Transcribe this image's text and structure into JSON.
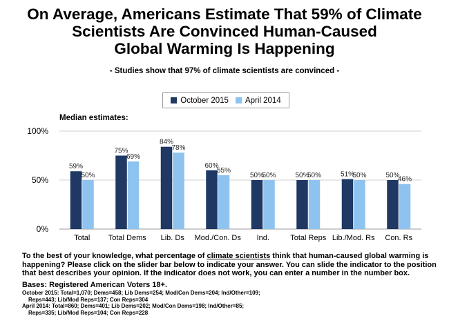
{
  "title": {
    "line1": "On Average, Americans Estimate That 59% of Climate",
    "line2": "Scientists Are Convinced Human-Caused",
    "line3": "Global Warming Is Happening"
  },
  "subtitle": "- Studies show that 97% of climate scientists are convinced -",
  "median_label": "Median estimates:",
  "question": {
    "before": "To the best of your knowledge, what percentage of ",
    "link": "climate scientists",
    "after": " think that human-caused global warming is happening? Please click on the slider bar below to indicate your answer. You can slide the indicator to the position that best describes your opinion. If the indicator does not work, you can enter a number in the number box."
  },
  "bases": "Bases: Registered American Voters 18+.",
  "notes": {
    "oct_line1": "October 2015: Total=1,070; Dems=458; Lib Dems=254; Mod/Con Dems=204; Ind/Other=109;",
    "oct_line2": "Reps=443; Lib/Mod Reps=137; Con Reps=304",
    "apr_line1": "April 2014: Total=860; Dems=401; Lib Dems=202; Mod/Con Dems=198; Ind/Other=85;",
    "apr_line2": "Reps=335; Lib/Mod Reps=104; Con Reps=228"
  },
  "colors": {
    "oct": "#1f3864",
    "apr": "#8ec3f0",
    "grid": "#d0d0d0",
    "axis": "#999999"
  },
  "chart_data": {
    "type": "bar",
    "title": "On Average, Americans Estimate That 59% of Climate Scientists Are Convinced Human-Caused Global Warming Is Happening",
    "categories": [
      "Total",
      "Total Dems",
      "Lib. Ds",
      "Mod./Con. Ds",
      "Ind.",
      "Total Reps",
      "Lib./Mod. Rs",
      "Con. Rs"
    ],
    "series": [
      {
        "name": "October 2015",
        "values": [
          59,
          75,
          84,
          60,
          50,
          50,
          51,
          50
        ]
      },
      {
        "name": "April 2014",
        "values": [
          50,
          69,
          78,
          55,
          50,
          50,
          50,
          46
        ]
      }
    ],
    "yticks": [
      "0%",
      "50%",
      "100%"
    ],
    "ylim": [
      0,
      100
    ],
    "grid": true,
    "legend": "top-center",
    "xlabel": "",
    "ylabel": ""
  }
}
